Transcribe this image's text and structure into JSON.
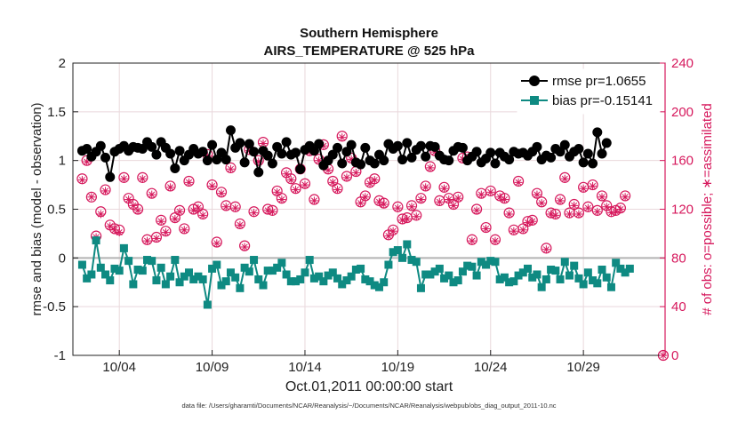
{
  "chart_data": {
    "type": "line",
    "title": "Southern Hemisphere",
    "subtitle": "AIRS_TEMPERATURE @ 525 hPa",
    "xlabel": "Oct.01,2011 00:00:00 start",
    "ylabel_left": "rmse and bias (model - observation)",
    "ylabel_right": "# of obs: o=possible; ∗=assimilated",
    "footer": "data file: /Users/gharamti/Documents/NCAR/Reanalysis/~/Documents/NCAR/Reanalysis/webpub/obs_diag_output_2011-10.nc",
    "x_unit": "days since Oct.01,2011",
    "xlim": [
      0.5,
      32.4
    ],
    "xticks": [
      {
        "x": 3,
        "label": "10/04"
      },
      {
        "x": 8,
        "label": "10/09"
      },
      {
        "x": 13,
        "label": "10/14"
      },
      {
        "x": 18,
        "label": "10/19"
      },
      {
        "x": 23,
        "label": "10/24"
      },
      {
        "x": 28,
        "label": "10/29"
      }
    ],
    "ylim_left": [
      -1,
      2
    ],
    "yticks_left": [
      -1,
      -0.5,
      0,
      0.5,
      1,
      1.5,
      2
    ],
    "ylim_right": [
      0,
      240
    ],
    "yticks_right": [
      0,
      40,
      80,
      120,
      160,
      200,
      240
    ],
    "zero_line": 0,
    "grid": true,
    "legend_position": "top-right",
    "colors": {
      "rmse": "#000000",
      "bias": "#0e8a82",
      "obs": "#d6185c",
      "zero": "#b3b3b3"
    },
    "series": [
      {
        "name": "rmse pr=1.0655",
        "axis": "left",
        "marker": "circle",
        "values": [
          1.1,
          1.09,
          1.12,
          1.14,
          1.04,
          0.97,
          1.09,
          0.94,
          1.15,
          0.99,
          1.03,
          1.03,
          0.83,
          1.04,
          1.09,
          1.06,
          1.12,
          1.09,
          1.15,
          1.03,
          1.1,
          1.18,
          1.14,
          1.17,
          1.13,
          1.05,
          1.12,
          1.1,
          1.19,
          1.04,
          1.14,
          1.11,
          1.06,
          1.15,
          1.19,
          1.12,
          1.13,
          1.1,
          1.07,
          1.09,
          0.92,
          1.19,
          1.1,
          1.17,
          1.0,
          0.97,
          1.06,
          1.05,
          1.12,
          1.15,
          1.07,
          1.18,
          1.09,
          1.2,
          1.0,
          1.01,
          1.16,
          1.16,
          1.01,
          1.01,
          1.08,
          1.15,
          1.01,
          1.18,
          1.31,
          1.06,
          1.13,
          1.04,
          1.18,
          1.2,
          0.98,
          0.94,
          1.17,
          1.19,
          1.09,
          1.02,
          0.88,
          0.95,
          1.1,
          1.11,
          1.05,
          1.14,
          0.97,
          1.11,
          1.14,
          1.13,
          1.07,
          0.99,
          1.19,
          1.07,
          1.06,
          1.09,
          1.08,
          1.15,
          0.91,
          0.99,
          1.11,
          1.06,
          1.15,
          1.1,
          1.1,
          1.13,
          1.17,
          1.09,
          0.95,
          0.96,
          1.0,
          0.92,
          1.06,
          1.05,
          1.13,
          1.0,
          0.97,
          1.13,
          1.09,
          1.05,
          1.16,
          1.18,
          0.98,
          1.14,
          0.96,
          1.17,
          1.13,
          1.03,
          1.0,
          0.99,
          0.97,
          1.17,
          1.06,
          0.99,
          1.0,
          1.11,
          1.17,
          0.96,
          1.12,
          1.05,
          1.15,
          1.06,
          1.01,
          1.13,
          1.18,
          1.14,
          1.03,
          1.04,
          1.11,
          0.92,
          1.15,
          1.1,
          1.04,
          1.11,
          1.15,
          1.09,
          1.14,
          0.98,
          1.05,
          1.16,
          1.01,
          0.98,
          1.0,
          0.97,
          1.1,
          1.04,
          1.14,
          1.08,
          1.13,
          1.09,
          1.0,
          0.97,
          1.04,
          1.16,
          1.09,
          1.14,
          0.98,
          0.99,
          1.02,
          1.09,
          1.08,
          1.06,
          0.97,
          0.94,
          1.08,
          1.03,
          1.04,
          0.95,
          1.01,
          0.97,
          1.09,
          1.04,
          1.07,
          1.15,
          1.08,
          1.04,
          1.05,
          1.0,
          1.09,
          1.07,
          1.14,
          1.1,
          1.01,
          0.95,
          1.05,
          1.1,
          1.03,
          1.11,
          1.12,
          0.98,
          1.09,
          1.03,
          1.16,
          1.06,
          1.04,
          0.96,
          1.09,
          1.03,
          1.12,
          1.0,
          0.98,
          0.98,
          1.07,
          0.98,
          0.97,
          1.29,
          1.29,
          1.09,
          1.07,
          1.17,
          1.18
        ]
      },
      {
        "name": "bias pr=-0.15141",
        "axis": "left",
        "marker": "square",
        "values": [
          -0.07,
          -0.14,
          -0.21,
          -0.2,
          -0.17,
          -0.21,
          0.18,
          0.17,
          -0.1,
          -0.18,
          -0.17,
          -0.2,
          -0.23,
          -0.19,
          -0.11,
          -0.05,
          -0.13,
          -0.14,
          0.1,
          -0.1,
          -0.03,
          -0.09,
          -0.27,
          -0.24,
          -0.12,
          -0.05,
          -0.13,
          -0.23,
          -0.02,
          -0.03,
          -0.03,
          -0.2,
          -0.23,
          -0.12,
          -0.1,
          -0.18,
          -0.27,
          -0.26,
          -0.19,
          -0.02,
          -0.02,
          -0.14,
          -0.25,
          -0.09,
          -0.19,
          -0.11,
          -0.15,
          -0.29,
          -0.22,
          -0.05,
          -0.19,
          -0.2,
          -0.22,
          -0.09,
          -0.48,
          -0.16,
          -0.11,
          -0.11,
          -0.07,
          -0.08,
          -0.28,
          -0.22,
          -0.24,
          -0.06,
          -0.15,
          -0.08,
          -0.2,
          -0.25,
          -0.31,
          -0.09,
          -0.1,
          -0.22,
          -0.14,
          0.0,
          -0.02,
          -0.06,
          -0.22,
          -0.29,
          -0.28,
          -0.18,
          -0.13,
          -0.19,
          -0.13,
          -0.29,
          -0.1,
          -0.11,
          -0.05,
          -0.24,
          -0.17,
          -0.22,
          -0.24,
          -0.15,
          -0.24,
          -0.12,
          -0.22,
          -0.27,
          -0.15,
          -0.07,
          -0.02,
          -0.06,
          -0.21,
          -0.03,
          -0.19,
          0.05,
          -0.24,
          -0.12,
          -0.18,
          -0.27,
          -0.15,
          -0.08,
          -0.21,
          -0.21,
          -0.27,
          -0.09,
          -0.23,
          -0.26,
          -0.19,
          -0.15,
          -0.12,
          -0.05,
          -0.11,
          -0.27,
          -0.22,
          -0.22,
          -0.24,
          -0.35,
          -0.28,
          -0.24,
          -0.3,
          -0.16,
          -0.25,
          -0.17,
          -0.07,
          -0.17,
          0.06,
          -0.27,
          0.08,
          0.12,
          0.0,
          0.04,
          0.14,
          0.13,
          -0.02,
          -0.17,
          -0.04,
          -0.21,
          -0.31,
          -0.27,
          -0.17,
          -0.21,
          -0.17,
          -0.22,
          -0.14,
          -0.22,
          -0.11,
          -0.24,
          -0.21,
          -0.32,
          -0.18,
          -0.14,
          -0.25,
          -0.25,
          -0.23,
          -0.19,
          -0.14,
          -0.2,
          -0.08,
          -0.29,
          -0.09,
          -0.25,
          -0.18,
          -0.15,
          -0.04,
          -0.23,
          -0.07,
          -0.27,
          -0.03,
          -0.22,
          -0.04,
          -0.15,
          -0.22,
          -0.26,
          -0.2,
          -0.2,
          -0.25,
          -0.19,
          -0.24,
          -0.13,
          -0.18,
          -0.26,
          -0.15,
          -0.23,
          -0.11,
          -0.21,
          -0.2,
          -0.08,
          -0.17,
          -0.19,
          -0.3,
          -0.17,
          -0.22,
          0.0,
          -0.12,
          -0.02,
          -0.13,
          -0.17,
          -0.22,
          -0.25,
          -0.04,
          -0.03,
          -0.18,
          -0.21,
          -0.08,
          -0.21,
          -0.21,
          -0.27,
          -0.27,
          -0.23,
          -0.15,
          -0.19,
          -0.23,
          -0.18,
          -0.26,
          -0.28,
          -0.12,
          -0.17,
          -0.2,
          -0.2,
          -0.3,
          -0.05,
          -0.05,
          -0.19,
          -0.11,
          -0.29,
          -0.15,
          -0.1,
          -0.11,
          -0.09
        ]
      },
      {
        "name": "possible obs",
        "axis": "right",
        "marker": "circle",
        "values": [
          145,
          153,
          160,
          130,
          130,
          155,
          98,
          125,
          118,
          108,
          136,
          112,
          107,
          142,
          104,
          144,
          103,
          130,
          146,
          154,
          129,
          153,
          124,
          102,
          120,
          132,
          146,
          127,
          95,
          137,
          133,
          147,
          97,
          119,
          111,
          136,
          102,
          103,
          139,
          106,
          113,
          119,
          119,
          157,
          104,
          112,
          143,
          111,
          120,
          136,
          122,
          142,
          116,
          134,
          165,
          88,
          140,
          137,
          93,
          123,
          134,
          135,
          123,
          161,
          154,
          137,
          122,
          155,
          108,
          126,
          90,
          156,
          169,
          115,
          118,
          130,
          160,
          156,
          175,
          117,
          120,
          146,
          119,
          131,
          135,
          139,
          129,
          141,
          150,
          144,
          145,
          148,
          137,
          133,
          153,
          129,
          141,
          142,
          168,
          143,
          128,
          171,
          161,
          162,
          173,
          167,
          153,
          154,
          143,
          152,
          137,
          163,
          180,
          169,
          147,
          167,
          162,
          147,
          151,
          139,
          126,
          113,
          131,
          135,
          142,
          109,
          145,
          132,
          127,
          149,
          125,
          155,
          99,
          115,
          103,
          139,
          122,
          124,
          112,
          146,
          113,
          126,
          123,
          110,
          115,
          115,
          129,
          118,
          139,
          149,
          155,
          124,
          168,
          104,
          127,
          105,
          138,
          108,
          129,
          101,
          124,
          120,
          130,
          114,
          162,
          116,
          163,
          109,
          95,
          128,
          120,
          142,
          133,
          128,
          105,
          140,
          135,
          132,
          95,
          114,
          131,
          106,
          129,
          127,
          117,
          121,
          103,
          108,
          143,
          112,
          104,
          140,
          110,
          126,
          111,
          146,
          133,
          136,
          126,
          148,
          88,
          143,
          117,
          112,
          116,
          118,
          128,
          145,
          146,
          137,
          117,
          135,
          124,
          165,
          117,
          127,
          138,
          123,
          122,
          134,
          140,
          150,
          119,
          110,
          131,
          113,
          123,
          159,
          118,
          132,
          119,
          119,
          121,
          118,
          131,
          164
        ]
      },
      {
        "name": "assimilated obs",
        "axis": "right",
        "marker": "asterisk",
        "values": [
          144,
          152,
          159,
          128,
          130,
          154,
          97,
          124,
          116,
          107,
          135,
          110,
          106,
          141,
          103,
          143,
          101,
          129,
          145,
          153,
          128,
          151,
          123,
          101,
          119,
          131,
          145,
          126,
          94,
          136,
          132,
          146,
          96,
          118,
          110,
          135,
          101,
          102,
          138,
          105,
          112,
          118,
          118,
          156,
          103,
          111,
          142,
          110,
          119,
          135,
          121,
          141,
          115,
          133,
          164,
          87,
          139,
          136,
          92,
          122,
          133,
          134,
          122,
          160,
          153,
          136,
          121,
          154,
          107,
          125,
          89,
          155,
          168,
          114,
          117,
          129,
          159,
          155,
          174,
          116,
          119,
          145,
          118,
          130,
          134,
          138,
          128,
          140,
          149,
          143,
          144,
          147,
          136,
          132,
          152,
          128,
          140,
          141,
          167,
          142,
          127,
          170,
          160,
          161,
          172,
          166,
          152,
          153,
          142,
          151,
          136,
          162,
          179,
          168,
          146,
          166,
          161,
          146,
          150,
          138,
          125,
          112,
          130,
          134,
          141,
          108,
          144,
          131,
          126,
          148,
          124,
          154,
          98,
          114,
          102,
          138,
          121,
          123,
          111,
          145,
          112,
          125,
          122,
          109,
          114,
          114,
          128,
          117,
          138,
          148,
          154,
          123,
          167,
          103,
          126,
          104,
          137,
          107,
          128,
          100,
          123,
          119,
          129,
          113,
          161,
          115,
          162,
          108,
          94,
          127,
          119,
          141,
          132,
          127,
          104,
          139,
          134,
          131,
          94,
          113,
          130,
          105,
          128,
          126,
          116,
          120,
          102,
          107,
          142,
          111,
          103,
          139,
          109,
          125,
          110,
          145,
          132,
          135,
          125,
          147,
          87,
          142,
          116,
          111,
          115,
          117,
          127,
          144,
          145,
          136,
          116,
          134,
          123,
          164,
          116,
          126,
          137,
          122,
          121,
          133,
          139,
          149,
          118,
          109,
          130,
          112,
          122,
          158,
          117,
          131,
          118,
          118,
          120,
          117,
          130,
          163
        ]
      }
    ],
    "obs_last_point": {
      "x": 32.3,
      "value": 0
    },
    "legend": [
      {
        "label": "rmse pr=1.0655"
      },
      {
        "label": "bias pr=-0.15141"
      }
    ]
  }
}
